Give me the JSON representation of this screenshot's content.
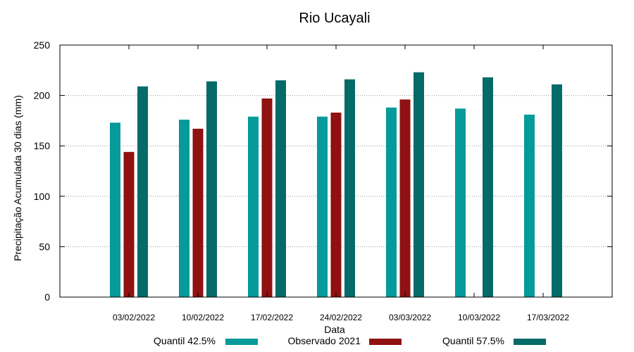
{
  "chart_data": {
    "type": "bar",
    "title": "Rio Ucayali",
    "xlabel": "Data",
    "ylabel": "Precipitação Acumulada 30 dias (mm)",
    "ylim": [
      0,
      250
    ],
    "yticks": [
      0,
      50,
      100,
      150,
      200,
      250
    ],
    "grid": "horizontal dotted",
    "legend_position": "bottom",
    "categories": [
      "03/02/2022",
      "10/02/2022",
      "17/02/2022",
      "24/02/2022",
      "03/03/2022",
      "10/03/2022",
      "17/03/2022"
    ],
    "series": [
      {
        "name": "Quantil 42.5%",
        "color": "#069a9a",
        "values": [
          173,
          176,
          179,
          179,
          188,
          187,
          181
        ]
      },
      {
        "name": "Observado 2021",
        "color": "#8f1111",
        "values": [
          144,
          167,
          197,
          183,
          196,
          null,
          null
        ]
      },
      {
        "name": "Quantil 57.5%",
        "color": "#056b69",
        "values": [
          209,
          214,
          215,
          216,
          223,
          218,
          211
        ]
      }
    ]
  }
}
